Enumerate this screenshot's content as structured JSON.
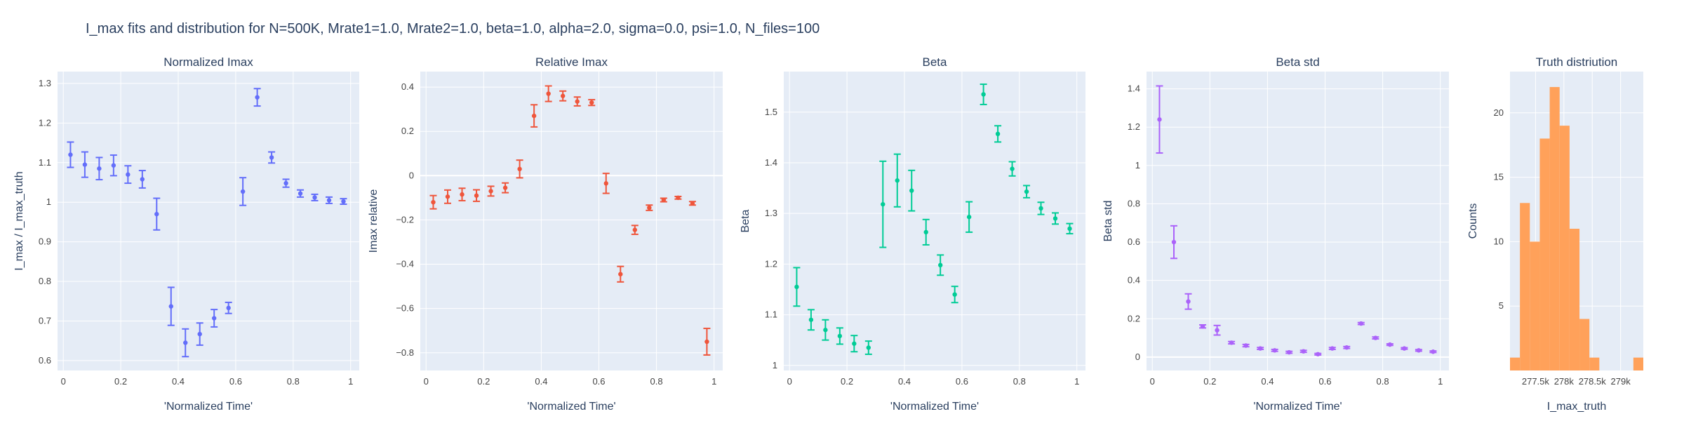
{
  "figure_title": "I_max fits and distribution for N=500K, Mrate1=1.0, Mrate2=1.0, beta=1.0, alpha=2.0, sigma=0.0,  psi=1.0, N_files=100",
  "chart_data": [
    {
      "type": "scatter",
      "title": "Normalized Imax",
      "xlabel": "'Normalized Time'",
      "ylabel": "I_max / I_max_truth",
      "color": "#636efa",
      "xlim": [
        -0.02,
        1.03
      ],
      "ylim": [
        0.575,
        1.33
      ],
      "xticks": [
        0,
        0.2,
        0.4,
        0.6,
        0.8,
        1
      ],
      "xtick_labels": [
        "0",
        "0.2",
        "0.4",
        "0.6",
        "0.8",
        "1"
      ],
      "yticks": [
        0.6,
        0.7,
        0.8,
        0.9,
        1,
        1.1,
        1.2,
        1.3
      ],
      "ytick_labels": [
        "0.6",
        "0.7",
        "0.8",
        "0.9",
        "1",
        "1.1",
        "1.2",
        "1.3"
      ],
      "x": [
        0.025,
        0.075,
        0.125,
        0.175,
        0.225,
        0.275,
        0.325,
        0.375,
        0.425,
        0.475,
        0.525,
        0.575,
        0.625,
        0.675,
        0.725,
        0.775,
        0.825,
        0.875,
        0.925,
        0.975
      ],
      "y": [
        1.12,
        1.095,
        1.085,
        1.093,
        1.07,
        1.058,
        0.97,
        0.737,
        0.645,
        0.667,
        0.707,
        0.733,
        1.027,
        1.265,
        1.113,
        1.048,
        1.022,
        1.012,
        1.005,
        1.002
      ],
      "err": [
        0.032,
        0.032,
        0.028,
        0.026,
        0.022,
        0.022,
        0.04,
        0.048,
        0.035,
        0.028,
        0.022,
        0.014,
        0.035,
        0.022,
        0.014,
        0.01,
        0.009,
        0.008,
        0.008,
        0.007
      ]
    },
    {
      "type": "scatter",
      "title": "Relative Imax",
      "xlabel": "'Normalized Time'",
      "ylabel": "Imax relative",
      "color": "#ef553b",
      "xlim": [
        -0.02,
        1.03
      ],
      "ylim": [
        -0.88,
        0.47
      ],
      "xticks": [
        0,
        0.2,
        0.4,
        0.6,
        0.8,
        1
      ],
      "xtick_labels": [
        "0",
        "0.2",
        "0.4",
        "0.6",
        "0.8",
        "1"
      ],
      "yticks": [
        -0.8,
        -0.6,
        -0.4,
        -0.2,
        0,
        0.2,
        0.4
      ],
      "ytick_labels": [
        "−0.8",
        "−0.6",
        "−0.4",
        "−0.2",
        "0",
        "0.2",
        "0.4"
      ],
      "x": [
        0.025,
        0.075,
        0.125,
        0.175,
        0.225,
        0.275,
        0.325,
        0.375,
        0.425,
        0.475,
        0.525,
        0.575,
        0.625,
        0.675,
        0.725,
        0.775,
        0.825,
        0.875,
        0.925,
        0.975
      ],
      "y": [
        -0.12,
        -0.095,
        -0.085,
        -0.09,
        -0.07,
        -0.055,
        0.03,
        0.27,
        0.37,
        0.36,
        0.335,
        0.33,
        -0.035,
        -0.445,
        -0.245,
        -0.145,
        -0.11,
        -0.1,
        -0.125,
        -0.75
      ],
      "err": [
        0.03,
        0.03,
        0.028,
        0.026,
        0.022,
        0.022,
        0.04,
        0.05,
        0.035,
        0.022,
        0.02,
        0.013,
        0.045,
        0.035,
        0.02,
        0.012,
        0.008,
        0.006,
        0.008,
        0.06
      ]
    },
    {
      "type": "scatter",
      "title": "Beta",
      "xlabel": "'Normalized Time'",
      "ylabel": "Beta",
      "color": "#00cc96",
      "xlim": [
        -0.02,
        1.03
      ],
      "ylim": [
        0.99,
        1.58
      ],
      "xticks": [
        0,
        0.2,
        0.4,
        0.6,
        0.8,
        1
      ],
      "xtick_labels": [
        "0",
        "0.2",
        "0.4",
        "0.6",
        "0.8",
        "1"
      ],
      "yticks": [
        1,
        1.1,
        1.2,
        1.3,
        1.4,
        1.5
      ],
      "ytick_labels": [
        "1",
        "1.1",
        "1.2",
        "1.3",
        "1.4",
        "1.5"
      ],
      "x": [
        0.025,
        0.075,
        0.125,
        0.175,
        0.225,
        0.275,
        0.325,
        0.375,
        0.425,
        0.475,
        0.525,
        0.575,
        0.625,
        0.675,
        0.725,
        0.775,
        0.825,
        0.875,
        0.925,
        0.975
      ],
      "y": [
        1.155,
        1.09,
        1.07,
        1.058,
        1.043,
        1.035,
        1.318,
        1.365,
        1.345,
        1.263,
        1.198,
        1.14,
        1.293,
        1.535,
        1.457,
        1.388,
        1.343,
        1.31,
        1.29,
        1.27
      ],
      "err": [
        0.038,
        0.02,
        0.02,
        0.016,
        0.016,
        0.013,
        0.085,
        0.052,
        0.04,
        0.025,
        0.02,
        0.016,
        0.03,
        0.02,
        0.016,
        0.014,
        0.012,
        0.012,
        0.011,
        0.01
      ]
    },
    {
      "type": "scatter",
      "title": "Beta std",
      "xlabel": "'Normalized Time'",
      "ylabel": "Beta std",
      "color": "#ab63fa",
      "xlim": [
        -0.02,
        1.03
      ],
      "ylim": [
        -0.07,
        1.49
      ],
      "xticks": [
        0,
        0.2,
        0.4,
        0.6,
        0.8,
        1
      ],
      "xtick_labels": [
        "0",
        "0.2",
        "0.4",
        "0.6",
        "0.8",
        "1"
      ],
      "yticks": [
        0,
        0.2,
        0.4,
        0.6,
        0.8,
        1,
        1.2,
        1.4
      ],
      "ytick_labels": [
        "0",
        "0.2",
        "0.4",
        "0.6",
        "0.8",
        "1",
        "1.2",
        "1.4"
      ],
      "x": [
        0.025,
        0.075,
        0.125,
        0.175,
        0.225,
        0.275,
        0.325,
        0.375,
        0.425,
        0.475,
        0.525,
        0.575,
        0.625,
        0.675,
        0.725,
        0.775,
        0.825,
        0.875,
        0.925,
        0.975
      ],
      "y": [
        1.24,
        0.6,
        0.29,
        0.16,
        0.14,
        0.075,
        0.06,
        0.045,
        0.035,
        0.025,
        0.03,
        0.015,
        0.045,
        0.05,
        0.175,
        0.1,
        0.065,
        0.045,
        0.035,
        0.028
      ],
      "err": [
        0.175,
        0.085,
        0.04,
        0.008,
        0.025,
        0.006,
        0.006,
        0.005,
        0.005,
        0.005,
        0.005,
        0.004,
        0.005,
        0.005,
        0.005,
        0.005,
        0.004,
        0.004,
        0.004,
        0.004
      ]
    },
    {
      "type": "bar",
      "title": "Truth distriution",
      "xlabel": "I_max_truth",
      "ylabel": "Counts",
      "color": "#ffa15a",
      "xlim": [
        277050,
        279400
      ],
      "ylim": [
        0,
        23.2
      ],
      "xticks": [
        277500,
        278000,
        278500,
        279000
      ],
      "xtick_labels": [
        "277.5k",
        "278k",
        "278.5k",
        "279k"
      ],
      "yticks": [
        5,
        10,
        15,
        20
      ],
      "ytick_labels": [
        "5",
        "10",
        "15",
        "20"
      ],
      "bin_edges": [
        277050,
        277225,
        277400,
        277575,
        277750,
        277925,
        278100,
        278275,
        278450,
        278625,
        278800,
        278975,
        279150,
        279225,
        279400
      ],
      "values": [
        1,
        13,
        10,
        18,
        22,
        19,
        11,
        4,
        1,
        0,
        0,
        0,
        0,
        1
      ]
    }
  ]
}
